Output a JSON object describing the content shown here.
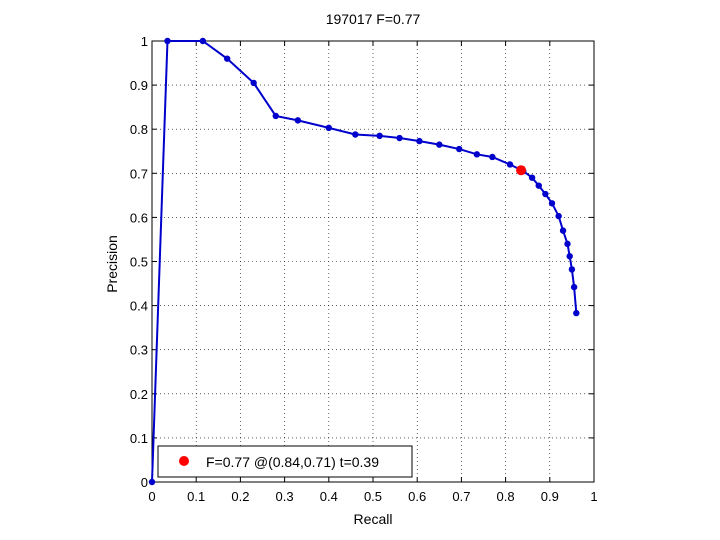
{
  "chart_data": {
    "type": "line",
    "title": "197017 F=0.77",
    "xlabel": "Recall",
    "ylabel": "Precision",
    "xlim": [
      0,
      1
    ],
    "ylim": [
      0,
      1
    ],
    "grid": true,
    "xticks": [
      "0",
      "0.1",
      "0.2",
      "0.3",
      "0.4",
      "0.5",
      "0.6",
      "0.7",
      "0.8",
      "0.9",
      "1"
    ],
    "yticks": [
      "0",
      "0.1",
      "0.2",
      "0.3",
      "0.4",
      "0.5",
      "0.6",
      "0.7",
      "0.8",
      "0.9",
      "1"
    ],
    "series": [
      {
        "color": "#0000cc",
        "x": [
          0.0,
          0.035,
          0.115,
          0.17,
          0.23,
          0.28,
          0.33,
          0.4,
          0.46,
          0.515,
          0.56,
          0.605,
          0.65,
          0.695,
          0.735,
          0.77,
          0.81,
          0.84,
          0.86,
          0.875,
          0.89,
          0.905,
          0.92,
          0.93,
          0.94,
          0.945,
          0.95,
          0.955,
          0.96
        ],
        "y": [
          0.0,
          1.0,
          1.0,
          0.96,
          0.905,
          0.83,
          0.82,
          0.803,
          0.788,
          0.785,
          0.78,
          0.773,
          0.765,
          0.755,
          0.743,
          0.737,
          0.72,
          0.705,
          0.69,
          0.672,
          0.653,
          0.632,
          0.603,
          0.57,
          0.54,
          0.512,
          0.482,
          0.442,
          0.383
        ]
      }
    ],
    "highlight": {
      "x": 0.835,
      "y": 0.707,
      "color": "#ff0000"
    },
    "legend": {
      "position": "bottom-left",
      "text": "F=0.77 @(0.84,0.71) t=0.39"
    }
  }
}
